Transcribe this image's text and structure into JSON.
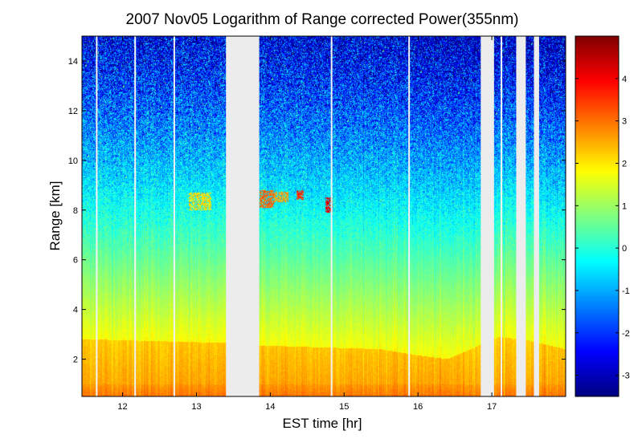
{
  "chart_data": {
    "type": "heatmap",
    "title": "2007 Nov05  Logarithm of Range corrected Power(355nm)",
    "xlabel": "EST time [hr]",
    "ylabel": "Range [km]",
    "xlim": [
      11.45,
      18.0
    ],
    "ylim": [
      0.5,
      15.0
    ],
    "x_ticks": [
      "12",
      "13",
      "14",
      "15",
      "16",
      "17"
    ],
    "y_ticks": [
      "2",
      "4",
      "6",
      "8",
      "10",
      "12",
      "14"
    ],
    "colorbar": {
      "range": [
        -3.5,
        5.0
      ],
      "ticks": [
        "-3",
        "-2",
        "-1",
        "0",
        "1",
        "2",
        "3",
        "4"
      ],
      "colormap": "jet"
    },
    "data_gaps_hr": [
      [
        13.4,
        13.85
      ],
      [
        16.85,
        17.03
      ],
      [
        17.33,
        17.46
      ],
      [
        17.57,
        17.64
      ]
    ],
    "profile_breaks_hr": [
      11.65,
      12.17,
      12.7,
      14.83,
      15.88,
      17.13
    ],
    "boundary_layer_top_km": [
      {
        "x": 11.5,
        "y": 2.8
      },
      {
        "x": 13.4,
        "y": 2.65
      },
      {
        "x": 13.85,
        "y": 2.55
      },
      {
        "x": 15.5,
        "y": 2.4
      },
      {
        "x": 16.0,
        "y": 2.15
      },
      {
        "x": 16.4,
        "y": 2.0
      },
      {
        "x": 17.1,
        "y": 2.9
      },
      {
        "x": 17.5,
        "y": 2.75
      },
      {
        "x": 18.0,
        "y": 2.4
      }
    ],
    "cloud_features": [
      {
        "x_start": 12.9,
        "x_end": 13.2,
        "y_bottom": 8.0,
        "y_top": 8.7,
        "level": 2.5
      },
      {
        "x_start": 13.85,
        "x_end": 14.05,
        "y_bottom": 8.1,
        "y_top": 8.8,
        "level": 3.5
      },
      {
        "x_start": 14.05,
        "x_end": 14.25,
        "y_bottom": 8.3,
        "y_top": 8.75,
        "level": 3.0
      },
      {
        "x_start": 14.35,
        "x_end": 14.45,
        "y_bottom": 8.4,
        "y_top": 8.8,
        "level": 4.0
      },
      {
        "x_start": 14.75,
        "x_end": 14.85,
        "y_bottom": 7.9,
        "y_top": 8.5,
        "level": 4.5
      }
    ]
  }
}
